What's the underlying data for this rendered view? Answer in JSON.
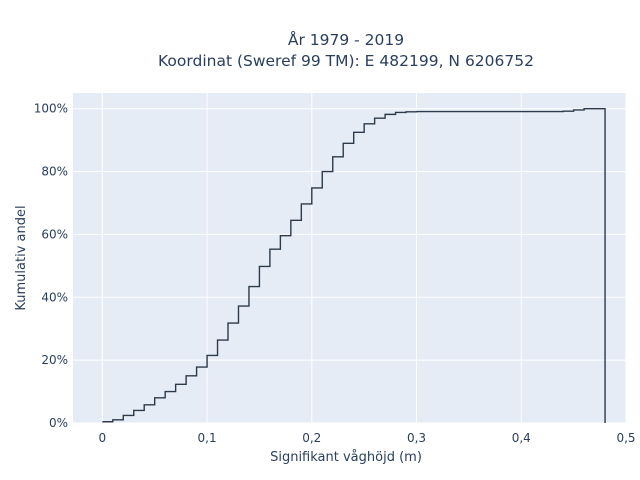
{
  "chart_data": {
    "type": "line",
    "line_shape": "step",
    "title_lines": [
      "År 1979 - 2019",
      "Koordinat (Sweref 99 TM): E 482199, N 6206752"
    ],
    "xlabel": "Signifikant våghöjd (m)",
    "ylabel": "Kumulativ andel",
    "xlim": [
      -0.028,
      0.5
    ],
    "ylim": [
      0,
      1.05
    ],
    "x_ticks": [
      0,
      0.1,
      0.2,
      0.3,
      0.4,
      0.5
    ],
    "x_tick_labels": [
      "0",
      "0,1",
      "0,2",
      "0,3",
      "0,4",
      "0,5"
    ],
    "y_ticks": [
      0,
      0.2,
      0.4,
      0.6,
      0.8,
      1.0
    ],
    "y_tick_labels": [
      "0%",
      "20%",
      "40%",
      "60%",
      "80%",
      "100%"
    ],
    "grid": true,
    "colors": {
      "plot_bg": "#e5ecf6",
      "grid": "#ffffff",
      "line": "#2c3a4a",
      "text": "#2a3f5f"
    },
    "series": [
      {
        "x": [
          0,
          0.01,
          0.02,
          0.03,
          0.04,
          0.05,
          0.06,
          0.07,
          0.08,
          0.09,
          0.1,
          0.11,
          0.12,
          0.13,
          0.14,
          0.15,
          0.16,
          0.17,
          0.18,
          0.19,
          0.2,
          0.21,
          0.22,
          0.23,
          0.24,
          0.25,
          0.26,
          0.27,
          0.28,
          0.29,
          0.3,
          0.44,
          0.45,
          0.46,
          0.48
        ],
        "y": [
          0.004,
          0.01,
          0.024,
          0.04,
          0.058,
          0.08,
          0.1,
          0.123,
          0.15,
          0.178,
          0.215,
          0.264,
          0.318,
          0.372,
          0.434,
          0.498,
          0.553,
          0.596,
          0.645,
          0.697,
          0.748,
          0.8,
          0.847,
          0.89,
          0.925,
          0.952,
          0.97,
          0.982,
          0.988,
          0.99,
          0.991,
          0.992,
          0.996,
          1.0,
          0.0
        ]
      }
    ]
  }
}
